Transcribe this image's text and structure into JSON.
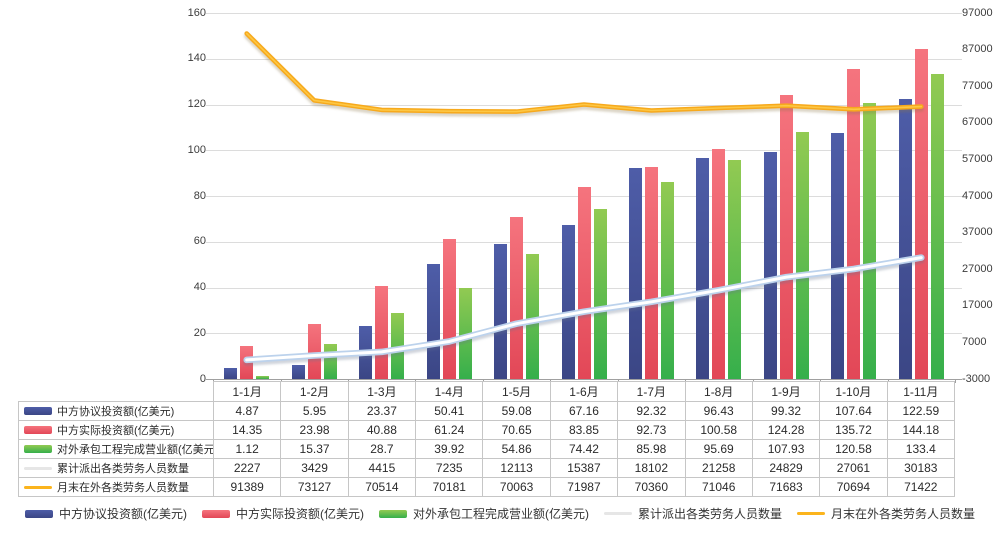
{
  "chart_data": {
    "type": "bar",
    "subtype": "combo-bar-line-dual-axis",
    "title": "",
    "categories": [
      "1-1月",
      "1-2月",
      "1-3月",
      "1-4月",
      "1-5月",
      "1-6月",
      "1-7月",
      "1-8月",
      "1-9月",
      "1-10月",
      "1-11月"
    ],
    "left_axis": {
      "min": 0,
      "max": 160,
      "step": 20,
      "ticks": [
        "0",
        "20",
        "40",
        "60",
        "80",
        "100",
        "120",
        "140",
        "160"
      ]
    },
    "right_axis": {
      "min": -3000,
      "max": 97000,
      "step": 10000,
      "ticks": [
        "-3000",
        "7000",
        "17000",
        "27000",
        "37000",
        "47000",
        "57000",
        "67000",
        "77000",
        "87000",
        "97000"
      ]
    },
    "grid": true,
    "legend_position": "bottom",
    "series": [
      {
        "name": "中方协议投资额(亿美元)",
        "type": "bar",
        "axis": "left",
        "color": "#46539B",
        "color_top": "#4E5DA8",
        "color_bottom": "#3B4685",
        "values": [
          4.87,
          5.95,
          23.37,
          50.41,
          59.08,
          67.16,
          92.32,
          96.43,
          99.32,
          107.64,
          122.59
        ]
      },
      {
        "name": "中方实际投资额(亿美元)",
        "type": "bar",
        "axis": "left",
        "color": "#EF5A68",
        "color_top": "#F5747E",
        "color_bottom": "#E24757",
        "values": [
          14.35,
          23.98,
          40.88,
          61.24,
          70.65,
          83.85,
          92.73,
          100.58,
          124.28,
          135.72,
          144.18
        ]
      },
      {
        "name": "对外承包工程完成营业额(亿美元)",
        "type": "bar",
        "axis": "left",
        "color": "#6FBE4A",
        "color_top": "#92CA52",
        "color_bottom": "#35AF4B",
        "values": [
          1.12,
          15.37,
          28.7,
          39.92,
          54.86,
          74.42,
          85.98,
          95.69,
          107.93,
          120.58,
          133.4
        ]
      },
      {
        "name": "累计派出各类劳务人员数量",
        "type": "line",
        "axis": "right",
        "color": "#BCD2EC",
        "core_color": "#FFFFFF",
        "legend_color": "#E6E6E6",
        "values": [
          2227,
          3429,
          4415,
          7235,
          12113,
          15387,
          18102,
          21258,
          24829,
          27061,
          30183
        ]
      },
      {
        "name": "月末在外各类劳务人员数量",
        "type": "line",
        "axis": "right",
        "color": "#F7A91C",
        "core_color": "#FDC744",
        "legend_color": "#FBB41D",
        "values": [
          91389,
          73127,
          70514,
          70181,
          70063,
          71987,
          70360,
          71046,
          71683,
          70694,
          71422
        ]
      }
    ]
  }
}
